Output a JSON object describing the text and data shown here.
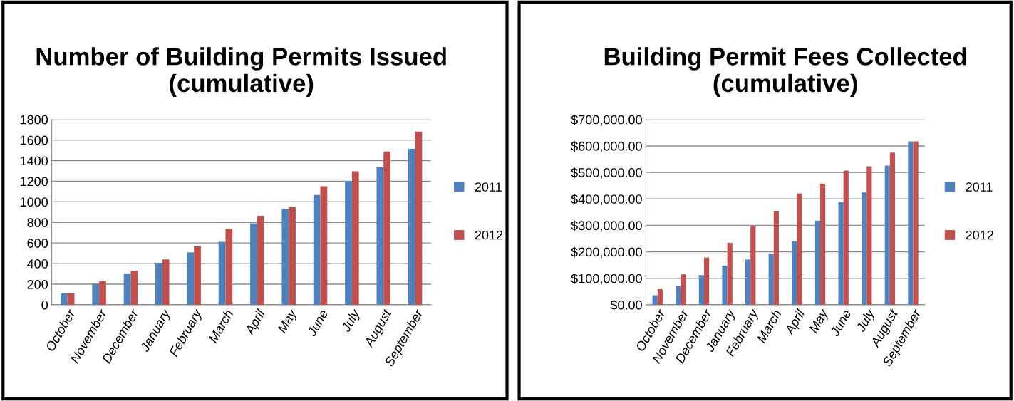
{
  "chart_data": [
    {
      "type": "bar",
      "title": "Number of Building Permits Issued\n(cumulative)",
      "categories": [
        "October",
        "November",
        "December",
        "January",
        "February",
        "March",
        "April",
        "May",
        "June",
        "July",
        "August",
        "September"
      ],
      "series": [
        {
          "name": "2011",
          "color": "#4f81bd",
          "values": [
            110,
            204,
            306,
            408,
            509,
            611,
            792,
            933,
            1066,
            1199,
            1335,
            1515
          ]
        },
        {
          "name": "2012",
          "color": "#c0504d",
          "values": [
            110,
            230,
            332,
            441,
            567,
            737,
            865,
            948,
            1152,
            1296,
            1489,
            1682
          ]
        }
      ],
      "ylim": [
        0,
        1800
      ],
      "yticks": [
        0,
        200,
        400,
        600,
        800,
        1000,
        1200,
        1400,
        1600,
        1800
      ],
      "grid": "y",
      "legend": "right"
    },
    {
      "type": "bar",
      "title": "Building Permit Fees Collected\n(cumulative)",
      "categories": [
        "October",
        "November",
        "December",
        "January",
        "February",
        "March",
        "April",
        "May",
        "June",
        "July",
        "August",
        "September"
      ],
      "series": [
        {
          "name": "2011",
          "color": "#4f81bd",
          "values": [
            36000,
            72000,
            112000,
            148000,
            171000,
            193000,
            240000,
            318000,
            388000,
            424000,
            526000,
            617000
          ]
        },
        {
          "name": "2012",
          "color": "#c0504d",
          "values": [
            59000,
            115000,
            178000,
            234000,
            297000,
            355000,
            421000,
            457000,
            507000,
            523000,
            575000,
            617000
          ]
        }
      ],
      "ylim": [
        0,
        700000
      ],
      "yticks": [
        {
          "value": 0,
          "label": "$0.00"
        },
        {
          "value": 100000,
          "label": "$100,000.00"
        },
        {
          "value": 200000,
          "label": "$200,000.00"
        },
        {
          "value": 300000,
          "label": "$300,000.00"
        },
        {
          "value": 400000,
          "label": "$400,000.00"
        },
        {
          "value": 500000,
          "label": "$500,000.00"
        },
        {
          "value": 600000,
          "label": "$600,000.00"
        },
        {
          "value": 700000,
          "label": "$700,000.00"
        }
      ],
      "grid": "y",
      "legend": "right"
    }
  ]
}
